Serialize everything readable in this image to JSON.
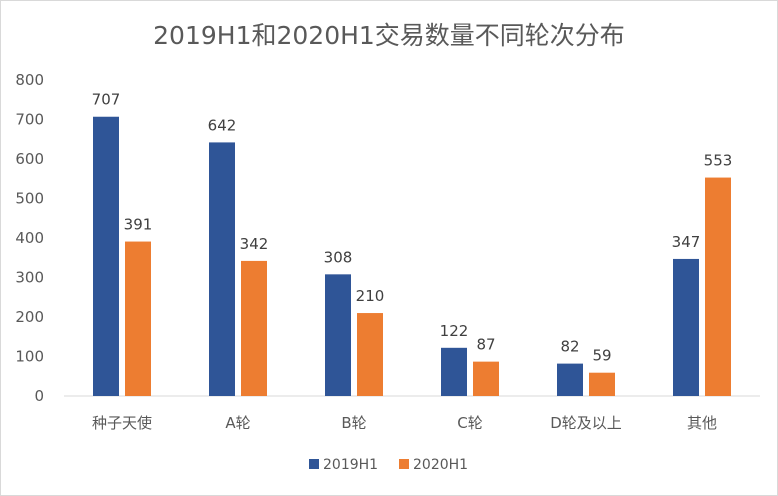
{
  "chart_data": {
    "type": "bar",
    "title": "2019H1和2020H1交易数量不同轮次分布",
    "categories": [
      "种子天使",
      "A轮",
      "B轮",
      "C轮",
      "D轮及以上",
      "其他"
    ],
    "series": [
      {
        "name": "2019H1",
        "color": "#2f5597",
        "values": [
          707,
          642,
          308,
          122,
          82,
          347
        ]
      },
      {
        "name": "2020H1",
        "color": "#ed7d31",
        "values": [
          391,
          342,
          210,
          87,
          59,
          553
        ]
      }
    ],
    "yticks": [
      0,
      100,
      200,
      300,
      400,
      500,
      600,
      700,
      800
    ],
    "ylim": [
      0,
      800
    ],
    "xlabel": "",
    "ylabel": "",
    "grid": false,
    "legend": "bottom"
  }
}
